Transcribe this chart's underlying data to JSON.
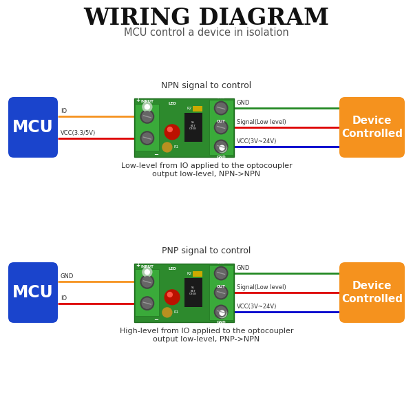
{
  "title": "WIRING DIAGRAM",
  "subtitle": "MCU control a device in isolation",
  "bg_color": "#ffffff",
  "title_color": "#111111",
  "subtitle_color": "#555555",
  "mcu_color": "#1a44cc",
  "device_color": "#f5921e",
  "board_color": "#2d8a2d",
  "board_dark": "#1a6a1a",
  "terminal_color": "#3aaa3a",
  "terminal_dark": "#227722",
  "npn_label": "NPN signal to control",
  "pnp_label": "PNP signal to control",
  "npn_desc1": "Low-level from IO applied to the optocoupler",
  "npn_desc2": "output low-level, NPN->NPN",
  "pnp_desc1": "High-level from IO applied to the optocoupler",
  "pnp_desc2": "output low-level, PNP->NPN",
  "npn_wires_left": [
    {
      "label": "VCC(3.3/5V)",
      "color": "#dd0000"
    },
    {
      "label": "IO",
      "color": "#f5921e"
    }
  ],
  "npn_wires_right": [
    {
      "label": "VCC(3V~24V)",
      "color": "#0000cc"
    },
    {
      "label": "Signal(Low level)",
      "color": "#dd0000"
    },
    {
      "label": "GND",
      "color": "#228822"
    }
  ],
  "pnp_wires_left": [
    {
      "label": "IO",
      "color": "#dd0000"
    },
    {
      "label": "GND",
      "color": "#f5921e"
    }
  ],
  "pnp_wires_right": [
    {
      "label": "VCC(3V~24V)",
      "color": "#0000cc"
    },
    {
      "label": "Signal(Low level)",
      "color": "#dd0000"
    },
    {
      "label": "GND",
      "color": "#228822"
    }
  ]
}
